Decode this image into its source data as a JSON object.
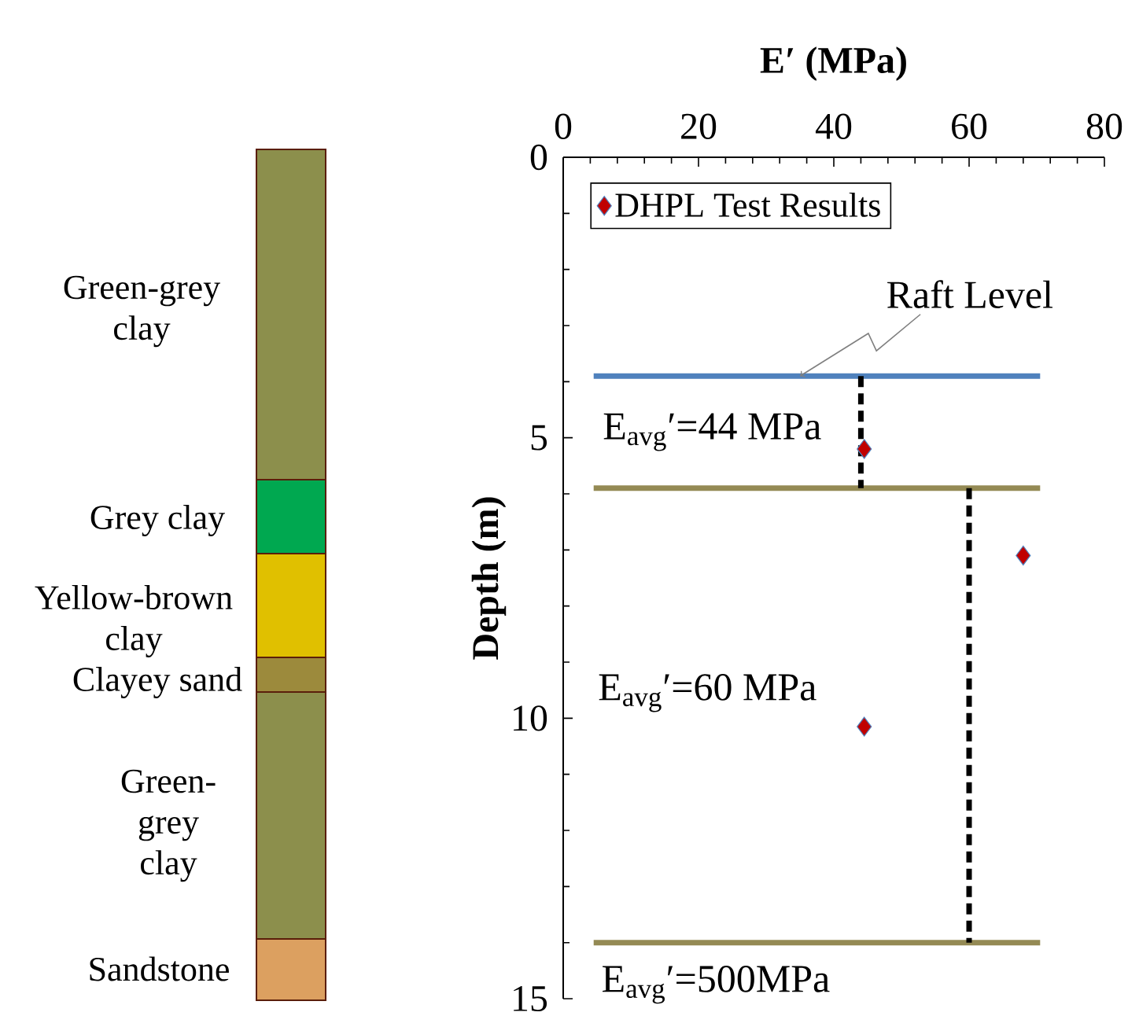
{
  "chart_data": {
    "type": "scatter",
    "xlabel": "E′ (MPa)",
    "ylabel": "Depth (m)",
    "xlim": [
      0,
      80
    ],
    "xticks": [
      0,
      20,
      40,
      60,
      80
    ],
    "ylim": [
      15,
      0
    ],
    "yticks": [
      0,
      5,
      10,
      15
    ],
    "legend": "top left",
    "series": [
      {
        "type": "scatter",
        "name": "DHPL  Test Results",
        "color": "#c00000",
        "marker": "diamond",
        "x": [
          44.5,
          68,
          44.5
        ],
        "values": [
          5.2,
          7.1,
          10.15
        ]
      },
      {
        "type": "line",
        "color": "#4f81bd",
        "x": [
          4.5,
          70.5
        ],
        "values": [
          3.9,
          3.9
        ]
      },
      {
        "type": "line",
        "color": "#948a54",
        "x": [
          4.5,
          70.5
        ],
        "values": [
          5.9,
          5.9
        ]
      },
      {
        "type": "line",
        "color": "#948a54",
        "x": [
          4.5,
          70.5
        ],
        "values": [
          14,
          14
        ]
      },
      {
        "type": "line",
        "color": "#000000",
        "line_style": "dashed",
        "x": [
          44,
          44
        ],
        "values": [
          3.9,
          5.9
        ]
      },
      {
        "type": "line",
        "color": "#000000",
        "line_style": "dashed",
        "x": [
          60,
          60
        ],
        "values": [
          5.9,
          14
        ]
      }
    ],
    "annotations": [
      {
        "text": "Raft Level",
        "x": 35,
        "y": 3.9
      },
      "E$_{avg}$′=44 MPa",
      "E$_{avg}$′=60 MPa",
      "E$_{avg}$′=500MPa",
      "Green-grey clay",
      "Grey clay",
      "Yellow-brown clay",
      "Clayey sand",
      "Green-grey clay",
      "Sandstone"
    ]
  }
}
